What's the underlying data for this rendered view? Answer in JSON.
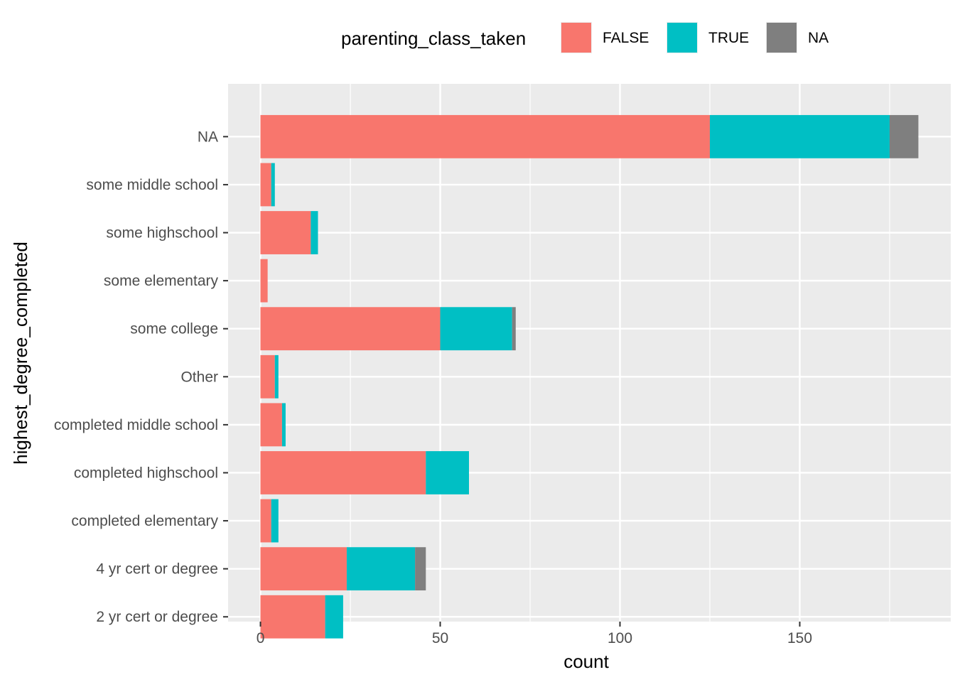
{
  "chart_data": {
    "type": "bar",
    "orientation": "horizontal",
    "stacked": true,
    "title": "",
    "xlabel": "count",
    "ylabel": "highest_degree_completed",
    "xlim": [
      -9,
      192
    ],
    "xticks": [
      0,
      50,
      100,
      150
    ],
    "grid": true,
    "legend": {
      "title": "parenting_class_taken",
      "position": "top"
    },
    "categories": [
      "NA",
      "some middle school",
      "some highschool",
      "some elementary",
      "some college",
      "Other",
      "completed middle school",
      "completed highschool",
      "completed elementary",
      "4 yr cert or degree",
      "2 yr cert or degree"
    ],
    "series": [
      {
        "name": "FALSE",
        "color": "#F8766D",
        "values": [
          125,
          3,
          14,
          2,
          50,
          4,
          6,
          46,
          3,
          24,
          18
        ]
      },
      {
        "name": "TRUE",
        "color": "#00BFC4",
        "values": [
          50,
          1,
          2,
          0,
          20,
          1,
          1,
          12,
          2,
          19,
          5
        ]
      },
      {
        "name": "NA",
        "color": "#7F7F7F",
        "values": [
          8,
          0,
          0,
          0,
          1,
          0,
          0,
          0,
          0,
          3,
          0
        ]
      }
    ]
  }
}
